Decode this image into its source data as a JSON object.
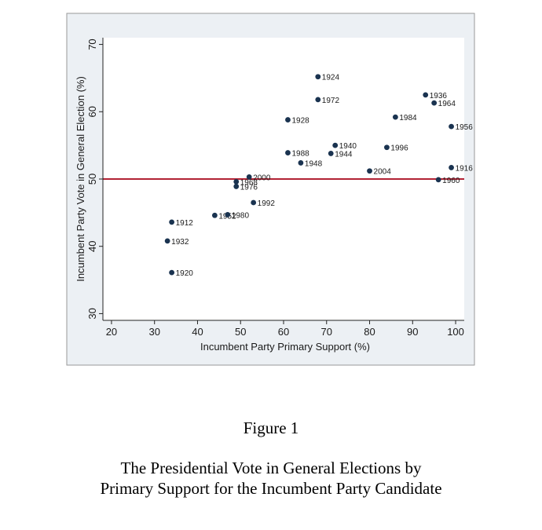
{
  "figure": {
    "number": "Figure 1",
    "title_line1": "The Presidential Vote in General Elections by",
    "title_line2": "Primary Support for the Incumbent Party Candidate"
  },
  "colors": {
    "outer_background": "#ecf0f4",
    "plot_background": "#ffffff",
    "points": "#1a3350",
    "reference_line": "#b22234"
  },
  "chart_data": {
    "type": "scatter",
    "xlabel": "Incumbent Party Primary Support (%)",
    "ylabel": "Incumbent Party Vote in General Election (%)",
    "xlim": [
      18,
      102
    ],
    "ylim": [
      29,
      71
    ],
    "xticks": [
      20,
      30,
      40,
      50,
      60,
      70,
      80,
      90,
      100
    ],
    "yticks": [
      30,
      40,
      50,
      60,
      70
    ],
    "grid": false,
    "reference_line_y": 50,
    "points": [
      {
        "label": "1912",
        "x": 34,
        "y": 43.6
      },
      {
        "label": "1916",
        "x": 99,
        "y": 51.7
      },
      {
        "label": "1920",
        "x": 34,
        "y": 36.1
      },
      {
        "label": "1924",
        "x": 68,
        "y": 65.2
      },
      {
        "label": "1928",
        "x": 61,
        "y": 58.8
      },
      {
        "label": "1932",
        "x": 33,
        "y": 40.8
      },
      {
        "label": "1936",
        "x": 93,
        "y": 62.5
      },
      {
        "label": "1940",
        "x": 72,
        "y": 55.0
      },
      {
        "label": "1944",
        "x": 71,
        "y": 53.8
      },
      {
        "label": "1948",
        "x": 64,
        "y": 52.4
      },
      {
        "label": "1952",
        "x": 44,
        "y": 44.6
      },
      {
        "label": "1956",
        "x": 99,
        "y": 57.8
      },
      {
        "label": "1960",
        "x": 96,
        "y": 49.9
      },
      {
        "label": "1964",
        "x": 95,
        "y": 61.3
      },
      {
        "label": "1968",
        "x": 49,
        "y": 49.6
      },
      {
        "label": "1972",
        "x": 68,
        "y": 61.8
      },
      {
        "label": "1976",
        "x": 49,
        "y": 48.9
      },
      {
        "label": "1980",
        "x": 47,
        "y": 44.7
      },
      {
        "label": "1984",
        "x": 86,
        "y": 59.2
      },
      {
        "label": "1988",
        "x": 61,
        "y": 53.9
      },
      {
        "label": "1992",
        "x": 53,
        "y": 46.5
      },
      {
        "label": "1996",
        "x": 84,
        "y": 54.7
      },
      {
        "label": "2000",
        "x": 52,
        "y": 50.3
      },
      {
        "label": "2004",
        "x": 80,
        "y": 51.2
      }
    ]
  }
}
